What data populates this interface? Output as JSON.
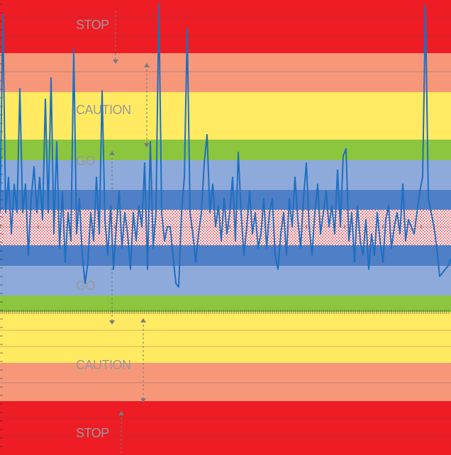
{
  "chart_data": {
    "type": "line",
    "ylim": [
      0,
      642
    ],
    "bands": [
      {
        "from": 567,
        "to": 642,
        "color": "#ee1c25"
      },
      {
        "from": 512,
        "to": 567,
        "color": "#f7977a"
      },
      {
        "from": 445,
        "to": 512,
        "color": "#ffea61"
      },
      {
        "from": 416,
        "to": 445,
        "color": "#8cc63f"
      },
      {
        "from": 374,
        "to": 416,
        "color": "#8eaadb"
      },
      {
        "from": 346,
        "to": 374,
        "color": "#4f7fc6"
      },
      {
        "from": 296,
        "to": 346,
        "color": "#d9232e",
        "pattern": "dots"
      },
      {
        "from": 267,
        "to": 296,
        "color": "#4f7fc6"
      },
      {
        "from": 225,
        "to": 267,
        "color": "#8eaadb"
      },
      {
        "from": 202,
        "to": 225,
        "color": "#8cc63f"
      },
      {
        "from": 130,
        "to": 202,
        "color": "#ffea61"
      },
      {
        "from": 76,
        "to": 130,
        "color": "#f7977a"
      },
      {
        "from": 0,
        "to": 76,
        "color": "#ee1c25"
      }
    ],
    "annotations": [
      "STOP",
      "CAUTION",
      "GO",
      "GO",
      "CAUTION",
      "STOP"
    ],
    "series": [
      {
        "color": "#1f6fc0",
        "values": [
          342,
          622,
          342,
          392,
          312,
          382,
          342,
          517,
          342,
          382,
          282,
          362,
          407,
          342,
          392,
          332,
          502,
          342,
          532,
          312,
          442,
          292,
          372,
          272,
          342,
          302,
          572,
          312,
          362,
          282,
          242,
          272,
          342,
          302,
          392,
          312,
          514,
          332,
          282,
          352,
          262,
          322,
          372,
          292,
          342,
          312,
          262,
          342,
          302,
          352,
          322,
          412,
          262,
          442,
          292,
          342,
          637,
          342,
          302,
          322,
          322,
          282,
          242,
          237,
          342,
          392,
          602,
          342,
          312,
          272,
          312,
          342,
          412,
          452,
          342,
          382,
          322,
          352,
          302,
          362,
          312,
          342,
          392,
          302,
          427,
          342,
          282,
          322,
          372,
          312,
          342,
          292,
          312,
          362,
          292,
          342,
          362,
          282,
          262,
          312,
          342,
          282,
          362,
          322,
          392,
          332,
          292,
          362,
          412,
          322,
          282,
          342,
          382,
          312,
          342,
          372,
          322,
          352,
          312,
          402,
          322,
          422,
          432,
          302,
          342,
          272,
          352,
          302,
          282,
          332,
          262,
          312,
          282,
          342,
          302,
          272,
          332,
          352,
          292,
          322,
          342,
          312,
          382,
          302,
          332,
          322,
          312,
          342,
          372,
          392,
          634,
          362,
          342,
          322,
          292,
          252,
          257,
          262,
          267,
          277
        ]
      }
    ]
  }
}
